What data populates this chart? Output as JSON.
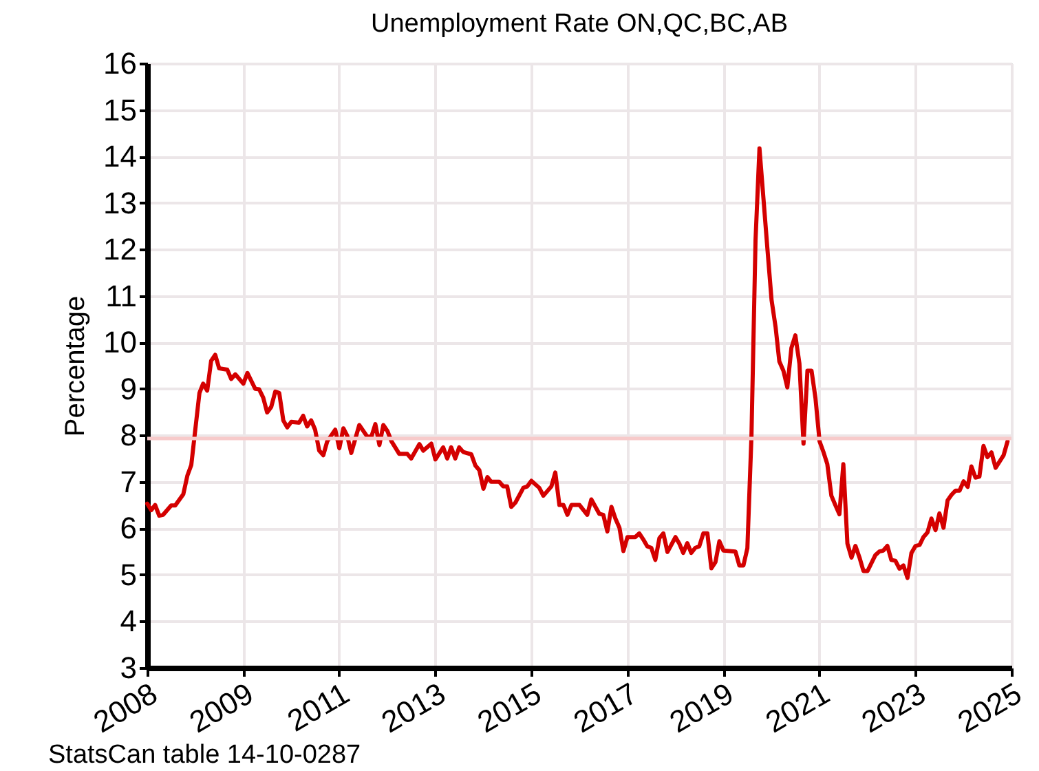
{
  "chart_data": {
    "type": "line",
    "title": "Unemployment Rate ON,QC,BC,AB",
    "ylabel": "Percentage",
    "annotations": [
      "StatsCan table 14-10-0287"
    ],
    "x": [
      "2008-01",
      "2008-02",
      "2008-03",
      "2008-04",
      "2008-05",
      "2008-07",
      "2008-08",
      "2008-10",
      "2008-11",
      "2008-12",
      "2009-02",
      "2009-03",
      "2009-04",
      "2009-05",
      "2009-06",
      "2009-07",
      "2009-09",
      "2009-10",
      "2009-11",
      "2010-01",
      "2010-02",
      "2010-04",
      "2010-05",
      "2010-06",
      "2010-07",
      "2010-08",
      "2010-09",
      "2010-10",
      "2010-11",
      "2010-12",
      "2011-01",
      "2011-03",
      "2011-04",
      "2011-05",
      "2011-06",
      "2011-07",
      "2011-08",
      "2011-09",
      "2011-10",
      "2011-12",
      "2012-01",
      "2012-02",
      "2012-03",
      "2012-04",
      "2012-06",
      "2012-08",
      "2012-09",
      "2012-10",
      "2012-11",
      "2012-12",
      "2013-01",
      "2013-02",
      "2013-04",
      "2013-06",
      "2013-07",
      "2013-09",
      "2013-10",
      "2013-12",
      "2014-01",
      "2014-03",
      "2014-04",
      "2014-05",
      "2014-06",
      "2014-07",
      "2014-08",
      "2014-10",
      "2014-11",
      "2014-12",
      "2015-01",
      "2015-02",
      "2015-03",
      "2015-05",
      "2015-06",
      "2015-07",
      "2015-08",
      "2015-09",
      "2015-11",
      "2015-12",
      "2016-01",
      "2016-03",
      "2016-04",
      "2016-06",
      "2016-07",
      "2016-08",
      "2016-09",
      "2016-10",
      "2016-11",
      "2017-01",
      "2017-03",
      "2017-04",
      "2017-06",
      "2017-07",
      "2017-08",
      "2017-09",
      "2017-10",
      "2017-11",
      "2017-12",
      "2018-01",
      "2018-03",
      "2018-04",
      "2018-05",
      "2018-06",
      "2018-07",
      "2018-08",
      "2018-09",
      "2018-10",
      "2018-11",
      "2019-01",
      "2019-02",
      "2019-03",
      "2019-04",
      "2019-05",
      "2019-06",
      "2019-07",
      "2019-08",
      "2019-09",
      "2019-10",
      "2019-11",
      "2019-12",
      "2020-01",
      "2020-04",
      "2020-05",
      "2020-06",
      "2020-07",
      "2020-08",
      "2020-09",
      "2020-10",
      "2020-11",
      "2020-12",
      "2021-01",
      "2021-02",
      "2021-03",
      "2021-04",
      "2021-05",
      "2021-06",
      "2021-07",
      "2021-08",
      "2021-09",
      "2021-10",
      "2021-11",
      "2021-12",
      "2022-01",
      "2022-02",
      "2022-03",
      "2022-04",
      "2022-05",
      "2022-06",
      "2022-07",
      "2022-08",
      "2022-09",
      "2022-10",
      "2022-11",
      "2022-12",
      "2023-01",
      "2023-03",
      "2023-04",
      "2023-05",
      "2023-06",
      "2023-07",
      "2023-08",
      "2023-09",
      "2023-10",
      "2023-11",
      "2023-12",
      "2024-01",
      "2024-02",
      "2024-03",
      "2024-04",
      "2024-05",
      "2024-06",
      "2024-07",
      "2024-08",
      "2024-09",
      "2024-10",
      "2024-11",
      "2024-12",
      "2025-01",
      "2025-02",
      "2025-03",
      "2025-04",
      "2025-05",
      "2025-06",
      "2025-07",
      "2025-08",
      "2025-09",
      "2025-11",
      "2025-12"
    ],
    "series": [
      {
        "color": "#d40000",
        "values": [
          6.53,
          6.39,
          6.5,
          6.27,
          6.29,
          6.49,
          6.49,
          6.73,
          7.13,
          7.36,
          8.91,
          9.11,
          8.96,
          9.6,
          9.73,
          9.44,
          9.41,
          9.21,
          9.31,
          9.11,
          9.34,
          9.0,
          8.99,
          8.81,
          8.49,
          8.61,
          8.94,
          8.91,
          8.32,
          8.17,
          8.29,
          8.27,
          8.42,
          8.19,
          8.32,
          8.12,
          7.67,
          7.57,
          7.87,
          8.12,
          7.72,
          8.15,
          7.99,
          7.62,
          8.22,
          7.97,
          7.97,
          8.24,
          7.79,
          8.22,
          8.09,
          7.87,
          7.6,
          7.6,
          7.5,
          7.81,
          7.67,
          7.82,
          7.48,
          7.74,
          7.5,
          7.74,
          7.5,
          7.74,
          7.64,
          7.59,
          7.35,
          7.25,
          6.85,
          7.1,
          7.0,
          7.0,
          6.9,
          6.9,
          6.46,
          6.55,
          6.87,
          6.9,
          7.02,
          6.87,
          6.7,
          6.9,
          7.2,
          6.5,
          6.5,
          6.29,
          6.5,
          6.5,
          6.29,
          6.62,
          6.31,
          6.29,
          5.93,
          6.46,
          6.21,
          6.01,
          5.51,
          5.81,
          5.81,
          5.89,
          5.76,
          5.61,
          5.58,
          5.32,
          5.79,
          5.89,
          5.49,
          5.81,
          5.66,
          5.47,
          5.68,
          5.47,
          5.58,
          5.61,
          5.89,
          5.89,
          5.14,
          5.27,
          5.72,
          5.52,
          5.5,
          5.2,
          5.2,
          5.57,
          7.97,
          12.19,
          14.17,
          13.07,
          11.99,
          10.91,
          10.32,
          9.59,
          9.39,
          9.03,
          9.88,
          10.15,
          9.54,
          7.82,
          9.39,
          9.39,
          8.8,
          7.87,
          7.63,
          7.38,
          6.7,
          6.5,
          6.3,
          7.38,
          5.67,
          5.37,
          5.62,
          5.37,
          5.08,
          5.08,
          5.42,
          5.5,
          5.52,
          5.62,
          5.32,
          5.3,
          5.13,
          5.2,
          4.93,
          5.47,
          5.62,
          5.64,
          5.81,
          5.91,
          6.21,
          5.96,
          6.32,
          6.01,
          6.6,
          6.72,
          6.81,
          6.81,
          7.01,
          6.89,
          7.33,
          7.09,
          7.11,
          7.77,
          7.53,
          7.63,
          7.3,
          7.57,
          7.87
        ]
      }
    ],
    "xlim": [
      "2008-01-01",
      "2025-12-31"
    ],
    "xticks": [
      {
        "value": "2008-01-01",
        "label": "2008"
      },
      {
        "value": "2009-12-31",
        "label": "2009"
      },
      {
        "value": "2011-12-31",
        "label": "2011"
      },
      {
        "value": "2013-12-31",
        "label": "2013"
      },
      {
        "value": "2015-12-31",
        "label": "2015"
      },
      {
        "value": "2017-12-31",
        "label": "2017"
      },
      {
        "value": "2019-12-31",
        "label": "2019"
      },
      {
        "value": "2021-12-31",
        "label": "2021"
      },
      {
        "value": "2023-12-31",
        "label": "2023"
      },
      {
        "value": "2025-12-31",
        "label": "2025"
      }
    ],
    "ylim": [
      3,
      16
    ],
    "yticks": [
      3,
      4,
      5,
      6,
      7,
      8,
      9,
      10,
      11,
      12,
      13,
      14,
      15,
      16
    ],
    "ref_lines": [
      {
        "axis": "y",
        "value": 7.93,
        "color": "#f7caca"
      }
    ],
    "grid": true,
    "marker": "none",
    "line_style": "solid"
  }
}
